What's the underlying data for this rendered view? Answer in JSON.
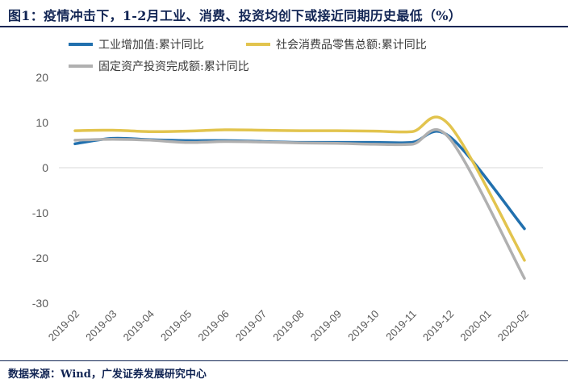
{
  "header": {
    "figure_label": "图1"
  },
  "footer": {
    "source": "数据来源：Wind，广发证券发展研究中心"
  },
  "colors": {
    "accent_navy": "#122554",
    "axis_label": "#595959",
    "gridline": "#D9D9D9"
  },
  "chart_data": {
    "type": "line",
    "title": "图1：疫情冲击下，1-2月工业、消费、投资均创下或接近同期历史最低（%）",
    "categories": [
      "2019-02",
      "2019-03",
      "2019-04",
      "2019-05",
      "2019-06",
      "2019-07",
      "2019-08",
      "2019-09",
      "2019-10",
      "2019-11",
      "2019-12",
      "2020-01",
      "2020-02"
    ],
    "series": [
      {
        "name": "工业增加值:累计同比",
        "color": "#2170AE",
        "values": [
          5.3,
          6.5,
          6.2,
          6.0,
          6.0,
          5.8,
          5.6,
          5.6,
          5.6,
          5.6,
          6.9,
          null,
          -13.5
        ]
      },
      {
        "name": "社会消费品零售总额:累计同比",
        "color": "#E2C44E",
        "values": [
          8.2,
          8.3,
          8.0,
          8.1,
          8.4,
          8.3,
          8.2,
          8.2,
          8.1,
          8.0,
          9.4,
          null,
          -20.5
        ]
      },
      {
        "name": "固定资产投资完成额:累计同比",
        "color": "#B0B0B0",
        "values": [
          6.1,
          6.3,
          6.1,
          5.6,
          5.8,
          5.7,
          5.5,
          5.4,
          5.2,
          5.2,
          6.5,
          null,
          -24.5
        ]
      }
    ],
    "ylim": [
      -30,
      20
    ],
    "yticks": [
      20,
      10,
      0,
      -10,
      -20,
      -30
    ],
    "xlabel": "",
    "ylabel": "",
    "grid": "zero-line-only",
    "legend_position": "top-left",
    "x_tick_rotation": -45
  }
}
